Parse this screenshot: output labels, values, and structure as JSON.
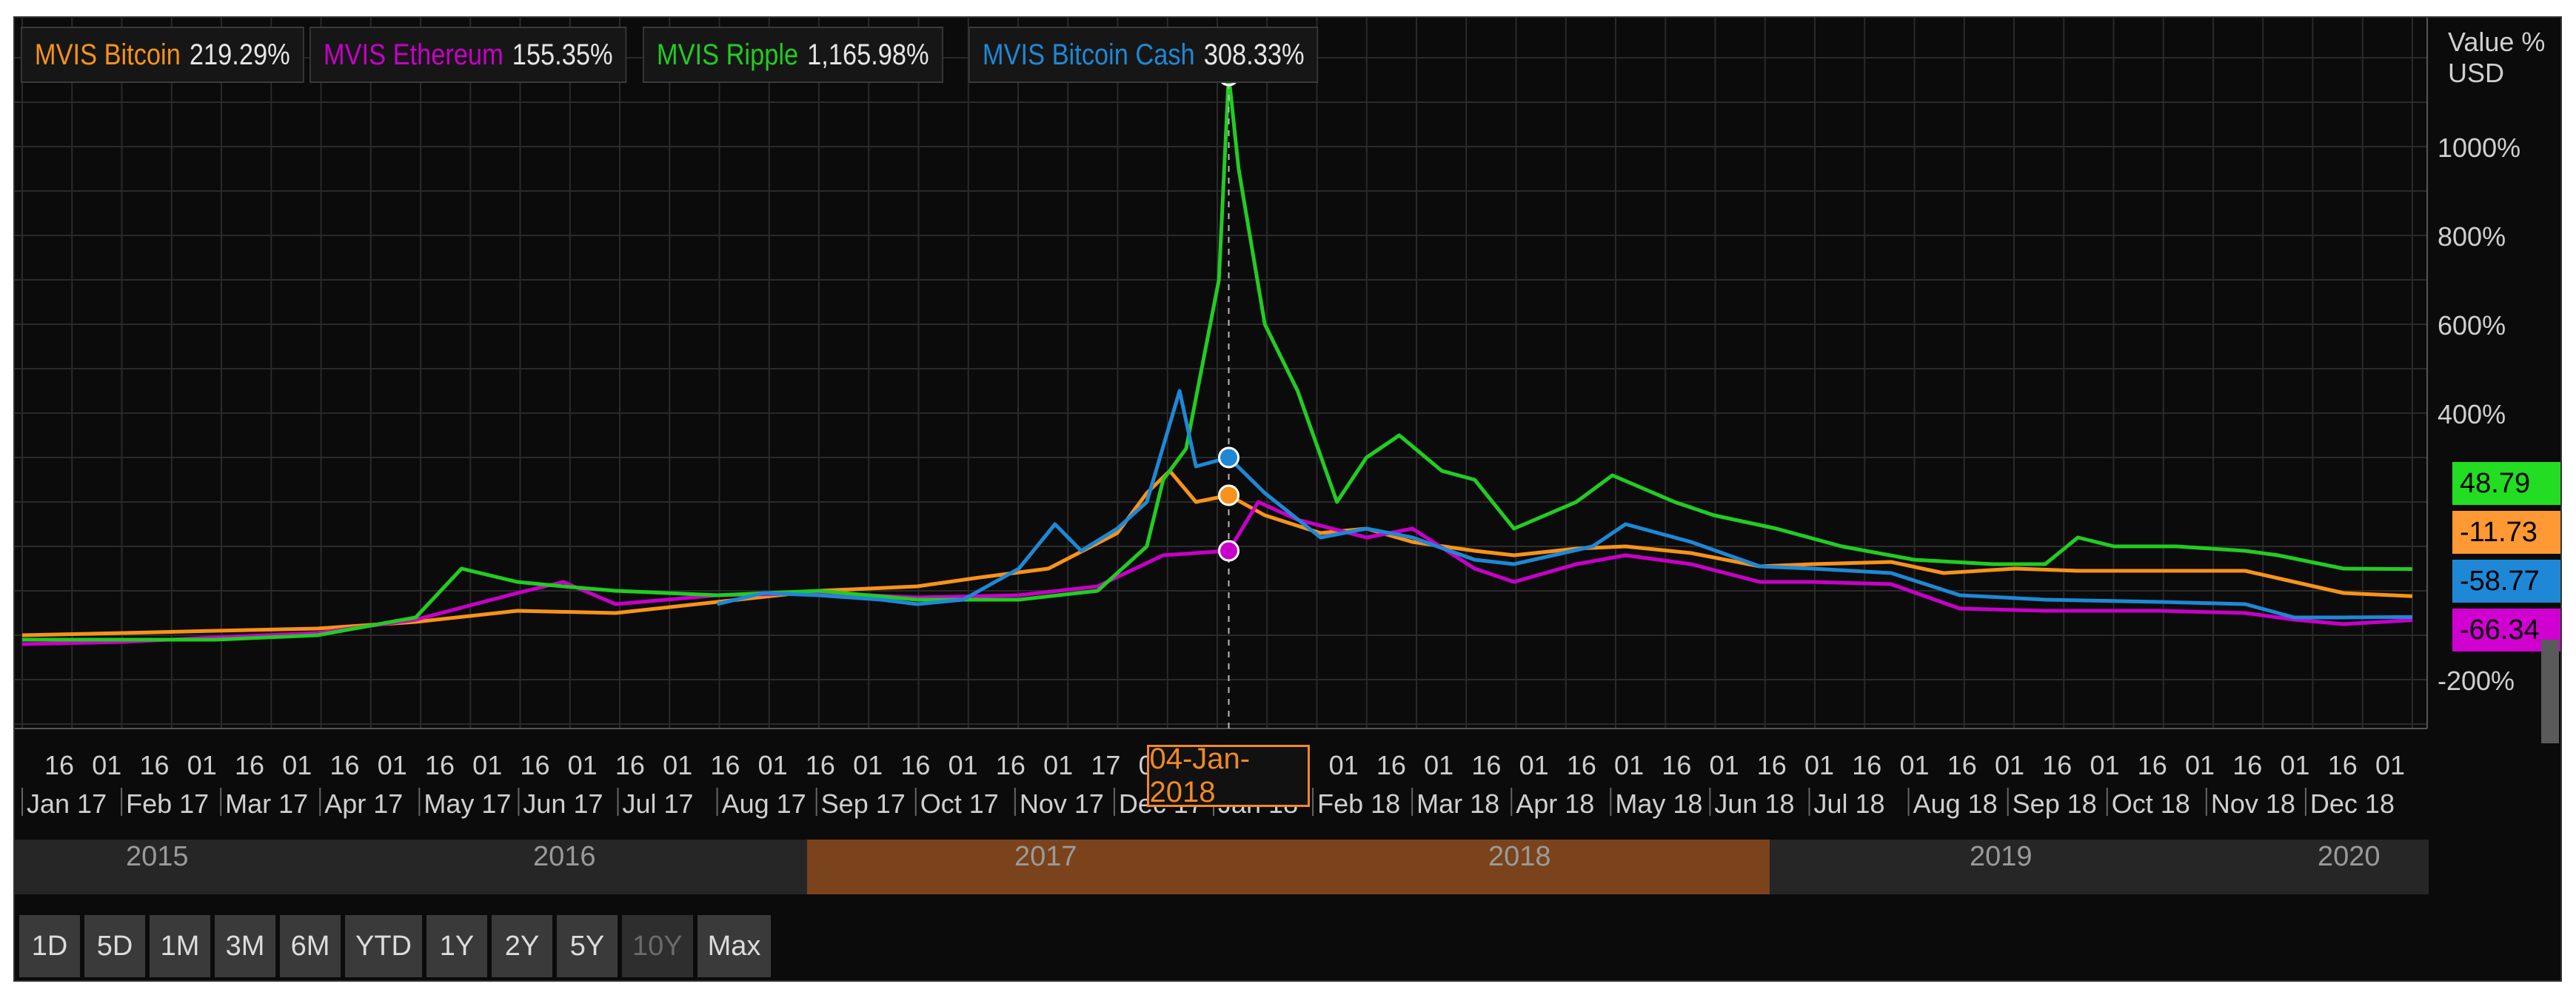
{
  "legend": [
    {
      "name": "MVIS Bitcoin",
      "value": "219.29%",
      "color": "#f7931a"
    },
    {
      "name": "MVIS Ethereum",
      "value": "155.35%",
      "color": "#c800c8"
    },
    {
      "name": "MVIS Ripple",
      "value": "1,165.98%",
      "color": "#22cc22"
    },
    {
      "name": "MVIS Bitcoin Cash",
      "value": "308.33%",
      "color": "#1e88d6"
    }
  ],
  "axis_unit": [
    "Value %",
    "USD"
  ],
  "side_tags": [
    {
      "value": "48.79",
      "color": "#22dd22"
    },
    {
      "value": "-11.73",
      "color": "#ff9933"
    },
    {
      "value": "-58.77",
      "color": "#1e88d6"
    },
    {
      "value": "-66.34",
      "color": "#d000d0"
    }
  ],
  "crosshair_date": "04-Jan-2018",
  "navigator": {
    "years": [
      "2015",
      "2016",
      "2017",
      "2018",
      "2019",
      "2020"
    ],
    "selected": [
      "2017",
      "2018"
    ]
  },
  "range_buttons": [
    {
      "label": "1D"
    },
    {
      "label": "5D"
    },
    {
      "label": "1M"
    },
    {
      "label": "3M"
    },
    {
      "label": "6M"
    },
    {
      "label": "YTD"
    },
    {
      "label": "1Y"
    },
    {
      "label": "2Y"
    },
    {
      "label": "5Y"
    },
    {
      "label": "10Y",
      "disabled": true
    },
    {
      "label": "Max"
    }
  ],
  "chart_data": {
    "type": "line",
    "ylabel": "Value % USD",
    "ylim": [
      -310,
      1290
    ],
    "yticks": [
      -200,
      400,
      600,
      800,
      1000
    ],
    "ytick_labels": [
      "-200%",
      "400%",
      "600%",
      "800%",
      "1000%"
    ],
    "x_range": [
      "2017-01-01",
      "2018-12-31"
    ],
    "x_top_ticks": [
      "16",
      "01",
      "16",
      "01",
      "16",
      "01",
      "16",
      "01",
      "16",
      "01",
      "16",
      "01",
      "16",
      "01",
      "16",
      "01",
      "16",
      "01",
      "16",
      "01",
      "16",
      "01",
      "17",
      "01",
      "16",
      "01",
      "16",
      "01",
      "16",
      "01",
      "16",
      "01",
      "16",
      "01",
      "16",
      "01",
      "16",
      "01",
      "16",
      "01",
      "16",
      "01",
      "16",
      "01",
      "16",
      "01",
      "16",
      "01",
      "16",
      "01"
    ],
    "x_month_labels": [
      "Jan 17",
      "Feb 17",
      "Mar 17",
      "Apr 17",
      "May 17",
      "Jun 17",
      "Jul 17",
      "Aug 17",
      "Sep 17",
      "Oct 17",
      "Nov 17",
      "Dec 17",
      "Jan 18",
      "Feb 18",
      "Mar 18",
      "Apr 18",
      "May 18",
      "Jun 18",
      "Jul 18",
      "Aug 18",
      "Sep 18",
      "Oct 18",
      "Nov 18",
      "Dec 18"
    ],
    "series": [
      {
        "name": "MVIS Bitcoin",
        "color": "#f7931a",
        "points": [
          [
            "2017-01-01",
            -100
          ],
          [
            "2017-02-01",
            -95
          ],
          [
            "2017-03-01",
            -90
          ],
          [
            "2017-04-01",
            -85
          ],
          [
            "2017-05-01",
            -70
          ],
          [
            "2017-06-01",
            -45
          ],
          [
            "2017-07-01",
            -50
          ],
          [
            "2017-08-01",
            -25
          ],
          [
            "2017-09-01",
            0
          ],
          [
            "2017-10-01",
            10
          ],
          [
            "2017-10-20",
            30
          ],
          [
            "2017-11-10",
            50
          ],
          [
            "2017-12-01",
            130
          ],
          [
            "2017-12-10",
            220
          ],
          [
            "2017-12-17",
            270
          ],
          [
            "2017-12-25",
            200
          ],
          [
            "2018-01-04",
            215
          ],
          [
            "2018-01-15",
            170
          ],
          [
            "2018-02-01",
            130
          ],
          [
            "2018-02-15",
            140
          ],
          [
            "2018-03-01",
            110
          ],
          [
            "2018-03-20",
            90
          ],
          [
            "2018-04-01",
            80
          ],
          [
            "2018-04-20",
            95
          ],
          [
            "2018-05-05",
            100
          ],
          [
            "2018-05-25",
            85
          ],
          [
            "2018-06-15",
            55
          ],
          [
            "2018-07-01",
            60
          ],
          [
            "2018-07-25",
            65
          ],
          [
            "2018-08-10",
            40
          ],
          [
            "2018-09-01",
            50
          ],
          [
            "2018-09-20",
            45
          ],
          [
            "2018-10-15",
            45
          ],
          [
            "2018-11-10",
            45
          ],
          [
            "2018-11-25",
            20
          ],
          [
            "2018-12-10",
            -5
          ],
          [
            "2018-12-31",
            -12
          ]
        ]
      },
      {
        "name": "MVIS Ethereum",
        "color": "#c800c8",
        "points": [
          [
            "2017-01-01",
            -120
          ],
          [
            "2017-02-01",
            -115
          ],
          [
            "2017-03-01",
            -105
          ],
          [
            "2017-04-01",
            -95
          ],
          [
            "2017-05-01",
            -65
          ],
          [
            "2017-06-01",
            -5
          ],
          [
            "2017-06-15",
            20
          ],
          [
            "2017-07-01",
            -30
          ],
          [
            "2017-08-01",
            -10
          ],
          [
            "2017-09-01",
            -5
          ],
          [
            "2017-10-01",
            -15
          ],
          [
            "2017-11-01",
            -10
          ],
          [
            "2017-11-25",
            10
          ],
          [
            "2017-12-15",
            80
          ],
          [
            "2018-01-04",
            90
          ],
          [
            "2018-01-13",
            200
          ],
          [
            "2018-01-25",
            160
          ],
          [
            "2018-02-15",
            120
          ],
          [
            "2018-03-01",
            140
          ],
          [
            "2018-03-20",
            50
          ],
          [
            "2018-04-01",
            20
          ],
          [
            "2018-04-20",
            60
          ],
          [
            "2018-05-05",
            80
          ],
          [
            "2018-05-25",
            60
          ],
          [
            "2018-06-15",
            20
          ],
          [
            "2018-07-01",
            20
          ],
          [
            "2018-07-25",
            15
          ],
          [
            "2018-08-15",
            -40
          ],
          [
            "2018-09-10",
            -45
          ],
          [
            "2018-10-15",
            -45
          ],
          [
            "2018-11-10",
            -50
          ],
          [
            "2018-11-25",
            -65
          ],
          [
            "2018-12-10",
            -75
          ],
          [
            "2018-12-31",
            -66
          ]
        ]
      },
      {
        "name": "MVIS Ripple",
        "color": "#22cc22",
        "points": [
          [
            "2017-01-01",
            -110
          ],
          [
            "2017-02-01",
            -110
          ],
          [
            "2017-03-01",
            -110
          ],
          [
            "2017-04-01",
            -100
          ],
          [
            "2017-05-01",
            -60
          ],
          [
            "2017-05-15",
            50
          ],
          [
            "2017-06-01",
            20
          ],
          [
            "2017-06-15",
            10
          ],
          [
            "2017-07-01",
            0
          ],
          [
            "2017-08-01",
            -10
          ],
          [
            "2017-09-01",
            0
          ],
          [
            "2017-10-01",
            -20
          ],
          [
            "2017-11-01",
            -20
          ],
          [
            "2017-11-25",
            0
          ],
          [
            "2017-12-10",
            100
          ],
          [
            "2017-12-15",
            250
          ],
          [
            "2017-12-22",
            320
          ],
          [
            "2018-01-01",
            700
          ],
          [
            "2018-01-03",
            1010
          ],
          [
            "2018-01-04",
            1160
          ],
          [
            "2018-01-07",
            950
          ],
          [
            "2018-01-15",
            600
          ],
          [
            "2018-01-25",
            450
          ],
          [
            "2018-02-06",
            200
          ],
          [
            "2018-02-15",
            300
          ],
          [
            "2018-02-25",
            350
          ],
          [
            "2018-03-10",
            270
          ],
          [
            "2018-03-20",
            250
          ],
          [
            "2018-04-01",
            140
          ],
          [
            "2018-04-20",
            200
          ],
          [
            "2018-05-01",
            260
          ],
          [
            "2018-05-20",
            200
          ],
          [
            "2018-06-01",
            170
          ],
          [
            "2018-06-20",
            140
          ],
          [
            "2018-07-10",
            100
          ],
          [
            "2018-08-01",
            70
          ],
          [
            "2018-08-25",
            60
          ],
          [
            "2018-09-10",
            60
          ],
          [
            "2018-09-20",
            120
          ],
          [
            "2018-10-01",
            100
          ],
          [
            "2018-10-20",
            100
          ],
          [
            "2018-11-10",
            90
          ],
          [
            "2018-11-20",
            80
          ],
          [
            "2018-12-10",
            50
          ],
          [
            "2018-12-31",
            49
          ]
        ]
      },
      {
        "name": "MVIS Bitcoin Cash",
        "color": "#1e88d6",
        "points": [
          [
            "2017-08-01",
            -30
          ],
          [
            "2017-08-15",
            -5
          ],
          [
            "2017-09-01",
            -10
          ],
          [
            "2017-09-20",
            -20
          ],
          [
            "2017-10-01",
            -30
          ],
          [
            "2017-10-15",
            -20
          ],
          [
            "2017-11-01",
            50
          ],
          [
            "2017-11-12",
            150
          ],
          [
            "2017-11-20",
            90
          ],
          [
            "2017-12-01",
            140
          ],
          [
            "2017-12-10",
            200
          ],
          [
            "2017-12-20",
            450
          ],
          [
            "2017-12-25",
            280
          ],
          [
            "2018-01-04",
            300
          ],
          [
            "2018-01-15",
            220
          ],
          [
            "2018-02-01",
            120
          ],
          [
            "2018-02-15",
            140
          ],
          [
            "2018-03-01",
            120
          ],
          [
            "2018-03-20",
            70
          ],
          [
            "2018-04-01",
            60
          ],
          [
            "2018-04-25",
            100
          ],
          [
            "2018-05-05",
            150
          ],
          [
            "2018-05-25",
            110
          ],
          [
            "2018-06-15",
            55
          ],
          [
            "2018-07-01",
            50
          ],
          [
            "2018-07-25",
            40
          ],
          [
            "2018-08-15",
            -10
          ],
          [
            "2018-09-10",
            -20
          ],
          [
            "2018-10-15",
            -25
          ],
          [
            "2018-11-10",
            -30
          ],
          [
            "2018-11-25",
            -60
          ],
          [
            "2018-12-10",
            -60
          ],
          [
            "2018-12-31",
            -59
          ]
        ]
      }
    ]
  }
}
